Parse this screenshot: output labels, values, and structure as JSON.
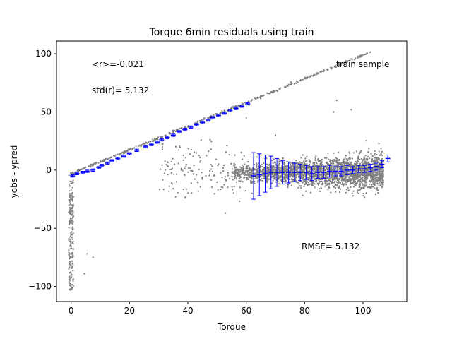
{
  "chart_data": {
    "type": "scatter",
    "title": "Torque 6min residuals using train",
    "xlabel": "Torque",
    "ylabel": "yobs - ypred",
    "xlim": [
      -5,
      115
    ],
    "ylim": [
      -113,
      111
    ],
    "xticks": [
      0,
      20,
      40,
      60,
      80,
      100
    ],
    "yticks": [
      -100,
      -50,
      0,
      50,
      100
    ],
    "grid": false,
    "annotations": {
      "mean_r": "<r>=-0.021",
      "std_r": "std(r)= 5.132",
      "sample": "train sample",
      "rmse": "RMSE= 5.132"
    },
    "colors": {
      "scatter": "#808080",
      "errorbars": "#0000ff"
    },
    "scatter_series": {
      "diagonal_line": {
        "x_range": [
          0,
          103
        ],
        "y_range": [
          -3,
          102
        ]
      },
      "zero_torque_column": {
        "x": 0,
        "y_range": [
          -104,
          -2
        ]
      },
      "dense_cloud": {
        "x_range": [
          55,
          107
        ],
        "y_center": 0,
        "y_spread": 20
      }
    },
    "errorbars": {
      "x": [
        0.5,
        2,
        4,
        5.5,
        7.5,
        9.5,
        10.5,
        12.5,
        14,
        16,
        18,
        20,
        22.5,
        25.5,
        27.5,
        29.5,
        31,
        33,
        35,
        37,
        39,
        41,
        43,
        45,
        47,
        48.5,
        50.5,
        52.5,
        54.5,
        56.5,
        58.5,
        60.5,
        62.5,
        64.5,
        66.5,
        68.5,
        70.5,
        72.5,
        74.5,
        76.5,
        78.5,
        80.5,
        82.5,
        84.5,
        86.5,
        88.5,
        90.5,
        92.5,
        94.5,
        96.5,
        98.5,
        100.5,
        102.5,
        104.5,
        106.5,
        108.5
      ],
      "y": [
        -5,
        -3,
        -2,
        -1,
        0,
        2,
        4,
        6,
        8,
        10,
        12,
        14,
        17,
        20,
        22,
        24,
        26,
        28,
        30,
        33,
        35,
        37,
        39,
        41,
        43,
        45,
        47,
        49,
        51,
        53,
        55,
        57,
        -5,
        -4,
        -3,
        -2,
        -2,
        -2,
        -2,
        -2,
        -2,
        -2,
        -3,
        -2,
        -2,
        -1,
        -1,
        -1,
        0,
        0,
        1,
        1,
        2,
        3,
        5,
        10
      ]
    }
  }
}
